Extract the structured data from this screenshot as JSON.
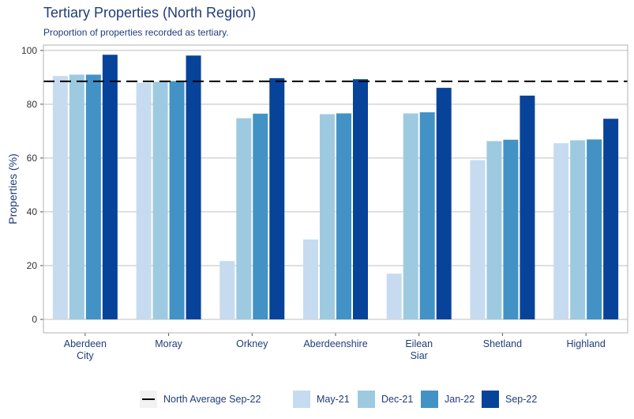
{
  "header": {
    "title": "Tertiary Properties (North Region)",
    "subtitle": "Proportion of properties recorded as tertiary."
  },
  "chart_data": {
    "type": "bar",
    "ylabel": "Properties (%)",
    "xlabel": "",
    "ylim": [
      -5,
      102
    ],
    "yticks": [
      0,
      20,
      40,
      60,
      80,
      100
    ],
    "grid": true,
    "legend_placement": "bottom",
    "categories": [
      [
        "Aberdeen",
        "City"
      ],
      [
        "Moray"
      ],
      [
        "Orkney"
      ],
      [
        "Aberdeenshire"
      ],
      [
        "Eilean",
        "Siar"
      ],
      [
        "Shetland"
      ],
      [
        "Highland"
      ]
    ],
    "series": [
      {
        "name": "May-21",
        "color": "#c6dbef",
        "values": [
          90.5,
          88.0,
          21.7,
          29.7,
          17.0,
          59.2,
          65.5
        ]
      },
      {
        "name": "Dec-21",
        "color": "#9ecae1",
        "values": [
          91.0,
          88.3,
          74.8,
          76.3,
          76.6,
          66.3,
          66.6
        ]
      },
      {
        "name": "Jan-22",
        "color": "#4292c6",
        "values": [
          91.0,
          88.6,
          76.5,
          76.6,
          77.0,
          66.8,
          66.9
        ]
      },
      {
        "name": "Sep-22",
        "color": "#08439a",
        "values": [
          98.4,
          98.1,
          89.7,
          89.3,
          86.1,
          83.2,
          74.6
        ]
      }
    ],
    "reference_line": {
      "name": "North Average Sep-22",
      "value": 88.5,
      "style": "dashed",
      "color": "#000000"
    }
  }
}
